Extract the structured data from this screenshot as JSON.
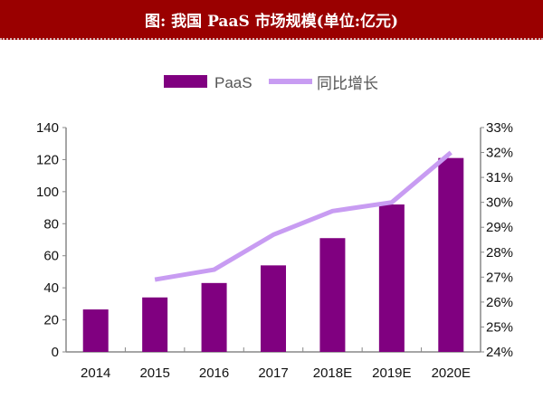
{
  "title": "图: 我国 PaaS 市场规模(单位:亿元)",
  "chart_data": {
    "type": "bar+line",
    "title": "图: 我国 PaaS 市场规模(单位:亿元)",
    "categories": [
      "2014",
      "2015",
      "2016",
      "2017",
      "2018E",
      "2019E",
      "2020E"
    ],
    "series": [
      {
        "name": "PaaS",
        "type": "bar",
        "axis": "left",
        "color": "#800080",
        "values": [
          26.5,
          34,
          43,
          54,
          71,
          92,
          121
        ]
      },
      {
        "name": "同比增长",
        "type": "line",
        "axis": "right",
        "color": "#c89cf2",
        "values": [
          null,
          26.9,
          27.3,
          28.7,
          29.65,
          30.0,
          32.0
        ]
      }
    ],
    "left_axis": {
      "range": [
        0,
        140
      ],
      "ticks": [
        "0",
        "20",
        "40",
        "60",
        "80",
        "100",
        "120",
        "140"
      ]
    },
    "right_axis": {
      "range": [
        24,
        33
      ],
      "ticks": [
        "24%",
        "25%",
        "26%",
        "27%",
        "28%",
        "29%",
        "30%",
        "31%",
        "32%",
        "33%"
      ]
    },
    "legend": "top-center",
    "grid": false
  }
}
